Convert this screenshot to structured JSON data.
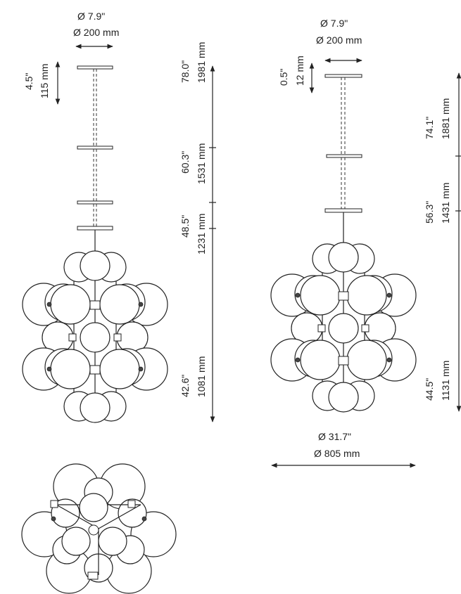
{
  "front_view": {
    "canopy_diameter_in": "Ø 7.9\"",
    "canopy_diameter_mm": "Ø 200 mm",
    "canopy_drop_in": "4.5\"",
    "canopy_drop_mm": "115 mm",
    "overall_height_in": "78.0\"",
    "overall_height_mm": "1981 mm",
    "height_2_in": "60.3\"",
    "height_2_mm": "1531 mm",
    "height_3_in": "48.5\"",
    "height_3_mm": "1231 mm",
    "body_height_in": "42.6\"",
    "body_height_mm": "1081 mm"
  },
  "side_view": {
    "canopy_diameter_in": "Ø 7.9\"",
    "canopy_diameter_mm": "Ø 200 mm",
    "canopy_drop_in": "0.5\"",
    "canopy_drop_mm": "12 mm",
    "overall_height_in": "74.1\"",
    "overall_height_mm": "1881 mm",
    "height_2_in": "56.3\"",
    "height_2_mm": "1431 mm",
    "body_height_in": "44.5\"",
    "body_height_mm": "1131 mm",
    "width_in": "Ø 31.7\"",
    "width_mm": "Ø 805 mm"
  }
}
